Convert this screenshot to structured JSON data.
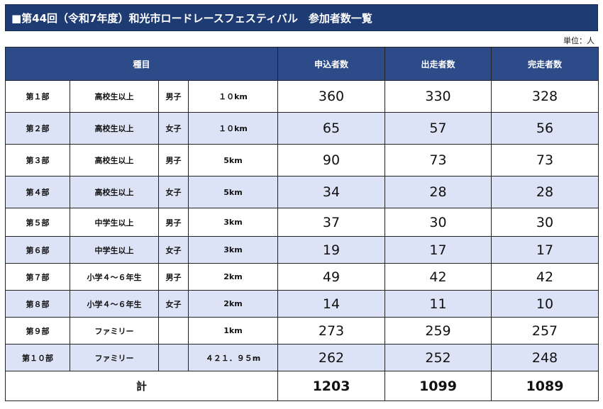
{
  "title": "■第44回（令和7年度）和光市ロードレースフェスティバル　参加者数一覧",
  "unit_label": "単位：人",
  "headers": {
    "category": "種目",
    "applicants": "申込者数",
    "starters": "出走者数",
    "finishers": "完走者数"
  },
  "rows": [
    {
      "division": "第１部",
      "group": "高校生以上",
      "gender": "男子",
      "distance": "１０km",
      "applicants": "360",
      "starters": "330",
      "finishers": "328"
    },
    {
      "division": "第２部",
      "group": "高校生以上",
      "gender": "女子",
      "distance": "１０km",
      "applicants": "65",
      "starters": "57",
      "finishers": "56"
    },
    {
      "division": "第３部",
      "group": "高校生以上",
      "gender": "男子",
      "distance": "5km",
      "applicants": "90",
      "starters": "73",
      "finishers": "73"
    },
    {
      "division": "第４部",
      "group": "高校生以上",
      "gender": "女子",
      "distance": "5km",
      "applicants": "34",
      "starters": "28",
      "finishers": "28"
    },
    {
      "division": "第５部",
      "group": "中学生以上",
      "gender": "男子",
      "distance": "3km",
      "applicants": "37",
      "starters": "30",
      "finishers": "30"
    },
    {
      "division": "第６部",
      "group": "中学生以上",
      "gender": "女子",
      "distance": "3km",
      "applicants": "19",
      "starters": "17",
      "finishers": "17"
    },
    {
      "division": "第７部",
      "group": "小学４～６年生",
      "gender": "男子",
      "distance": "2km",
      "applicants": "49",
      "starters": "42",
      "finishers": "42"
    },
    {
      "division": "第８部",
      "group": "小学４～６年生",
      "gender": "女子",
      "distance": "2km",
      "applicants": "14",
      "starters": "11",
      "finishers": "10"
    },
    {
      "division": "第９部",
      "group": "ファミリー",
      "gender": "",
      "distance": "1km",
      "applicants": "273",
      "starters": "259",
      "finishers": "257"
    },
    {
      "division": "第１０部",
      "group": "ファミリー",
      "gender": "",
      "distance": "４２１．９５m",
      "applicants": "262",
      "starters": "252",
      "finishers": "248"
    }
  ],
  "total": {
    "label": "計",
    "applicants": "1203",
    "starters": "1099",
    "finishers": "1089"
  }
}
